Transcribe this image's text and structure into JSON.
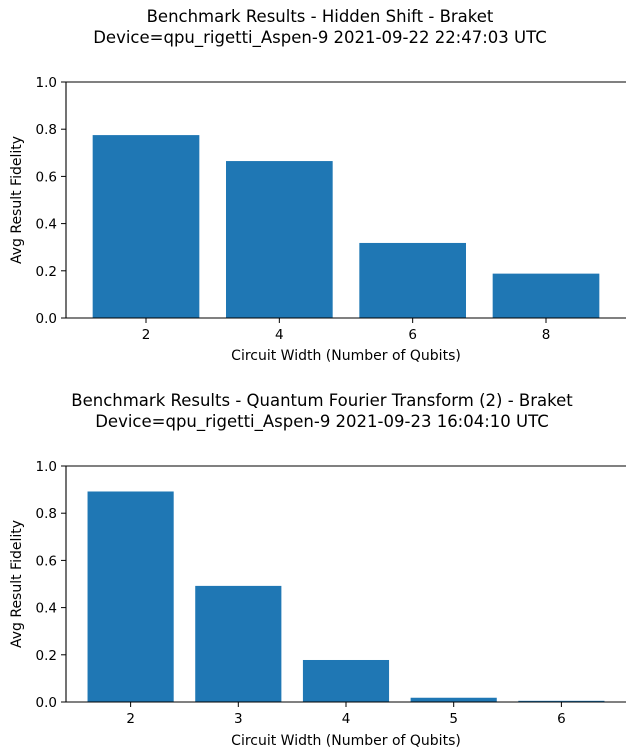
{
  "chart_data": [
    {
      "type": "bar",
      "title_line1": "Benchmark Results - Hidden Shift - Braket",
      "title_line2": "Device=qpu_rigetti_Aspen-9  2021-09-22 22:47:03 UTC",
      "xlabel": "Circuit Width (Number of Qubits)",
      "ylabel": "Avg Result Fidelity",
      "categories": [
        "2",
        "4",
        "6",
        "8"
      ],
      "values": [
        0.775,
        0.665,
        0.318,
        0.188
      ],
      "ylim": [
        0,
        1.0
      ],
      "yticks": [
        "0.0",
        "0.2",
        "0.4",
        "0.6",
        "0.8",
        "1.0"
      ],
      "bar_color": "#1f77b4",
      "grid": false
    },
    {
      "type": "bar",
      "title_line1": "Benchmark Results - Quantum Fourier Transform (2) - Braket",
      "title_line2": "Device=qpu_rigetti_Aspen-9  2021-09-23 16:04:10 UTC",
      "xlabel": "Circuit Width (Number of Qubits)",
      "ylabel": "Avg Result Fidelity",
      "categories": [
        "2",
        "3",
        "4",
        "5",
        "6"
      ],
      "values": [
        0.892,
        0.492,
        0.178,
        0.018,
        0.005
      ],
      "ylim": [
        0,
        1.0
      ],
      "yticks": [
        "0.0",
        "0.2",
        "0.4",
        "0.6",
        "0.8",
        "1.0"
      ],
      "bar_color": "#1f77b4",
      "grid": false
    }
  ]
}
